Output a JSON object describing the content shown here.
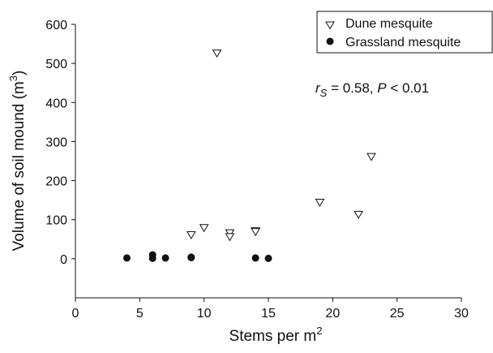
{
  "chart_data": {
    "type": "scatter",
    "xlabel": "Stems per m",
    "xlabel_sup": "2",
    "ylabel": "Volume of soil mound (m",
    "ylabel_sup": "3",
    "ylabel_close": ")",
    "xlim": [
      0,
      30
    ],
    "ylim": [
      -100,
      600
    ],
    "xticks": [
      0,
      5,
      10,
      15,
      20,
      25,
      30
    ],
    "yticks": [
      0,
      100,
      200,
      300,
      400,
      500,
      600
    ],
    "grid": false,
    "legend_position": "top-right",
    "annotation": {
      "r": "r",
      "r_sub": "S",
      "mid": " = 0.58, ",
      "p": "P",
      "tail": " < 0.01"
    },
    "series": [
      {
        "name": "Dune mesquite",
        "marker": "triangle-down-open",
        "points": [
          {
            "x": 9,
            "y": 60
          },
          {
            "x": 10,
            "y": 78
          },
          {
            "x": 11,
            "y": 525
          },
          {
            "x": 12,
            "y": 65
          },
          {
            "x": 12,
            "y": 55
          },
          {
            "x": 14,
            "y": 70
          },
          {
            "x": 14,
            "y": 68
          },
          {
            "x": 19,
            "y": 143
          },
          {
            "x": 22,
            "y": 112
          },
          {
            "x": 23,
            "y": 260
          }
        ]
      },
      {
        "name": "Grassland mesquite",
        "marker": "circle-filled",
        "points": [
          {
            "x": 4,
            "y": 2
          },
          {
            "x": 6,
            "y": 10
          },
          {
            "x": 6,
            "y": 1
          },
          {
            "x": 7,
            "y": 2
          },
          {
            "x": 9,
            "y": 4
          },
          {
            "x": 9,
            "y": 3
          },
          {
            "x": 14,
            "y": 2
          },
          {
            "x": 15,
            "y": 1
          }
        ]
      }
    ]
  },
  "colors": {
    "axis": "#111111",
    "marker_fill": "#111111",
    "background": "#ffffff"
  }
}
